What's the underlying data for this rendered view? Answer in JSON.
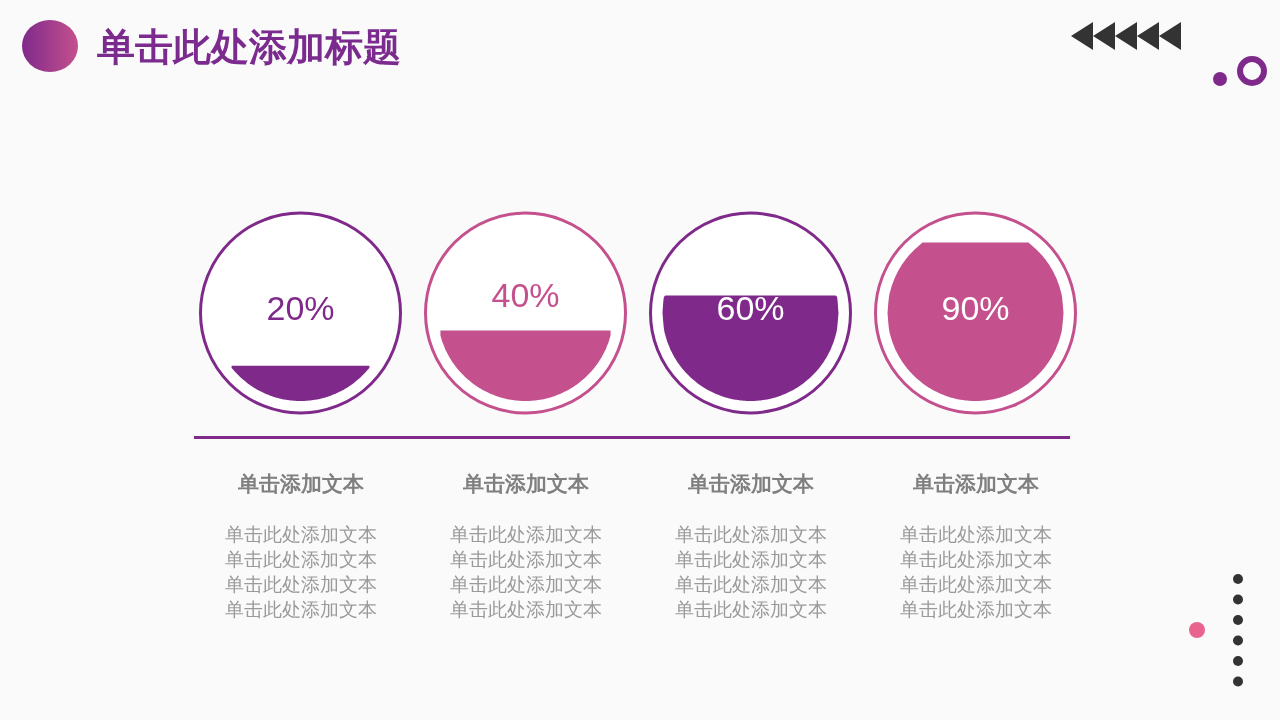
{
  "chart_data": {
    "type": "other",
    "title": "单击此处添加标题",
    "categories": [
      "单击添加文本",
      "单击添加文本",
      "单击添加文本",
      "单击添加文本"
    ],
    "values": [
      20,
      40,
      60,
      90
    ],
    "value_labels": [
      "20%",
      "40%",
      "60%",
      "90%"
    ],
    "colors": [
      "#7f2a8a",
      "#c4508e",
      "#7f2a8a",
      "#c4508e"
    ],
    "annotations": [
      "单击此处添加文本",
      "单击此处添加文本",
      "单击此处添加文本",
      "单击此处添加文本",
      "单击此处添加文本",
      "单击此处添加文本",
      "单击此处添加文本",
      "单击此处添加文本",
      "单击此处添加文本",
      "单击此处添加文本",
      "单击此处添加文本",
      "单击此处添加文本",
      "单击此处添加文本",
      "单击此处添加文本",
      "单击此处添加文本",
      "单击此处添加文本"
    ]
  }
}
